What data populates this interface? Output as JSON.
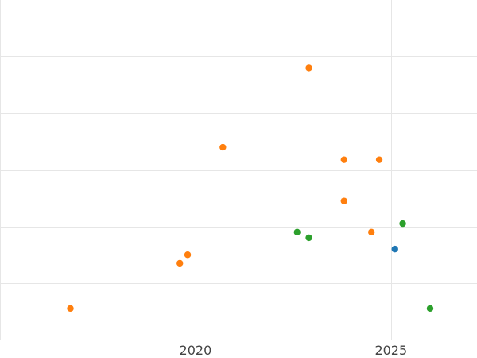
{
  "chart_data": {
    "type": "scatter",
    "title": "",
    "xlabel": "",
    "ylabel": "",
    "xlim": [
      2015.0,
      2027.2
    ],
    "ylim": [
      0,
      6
    ],
    "x_ticks": [
      2020,
      2025
    ],
    "x_tick_labels": [
      "2020",
      "2025"
    ],
    "y_gridlines": [
      1,
      2,
      3,
      4,
      5
    ],
    "x_minor_gridlines": [
      2015
    ],
    "grid": true,
    "legend": "none",
    "series": [
      {
        "color": "#1f77b4",
        "points": [
          {
            "x": 2025.1,
            "y": 1.6
          }
        ]
      },
      {
        "color": "#ff7f0e",
        "points": [
          {
            "x": 2016.8,
            "y": 0.55
          },
          {
            "x": 2019.6,
            "y": 1.35
          },
          {
            "x": 2019.8,
            "y": 1.5
          },
          {
            "x": 2020.7,
            "y": 3.4
          },
          {
            "x": 2022.9,
            "y": 4.8
          },
          {
            "x": 2023.8,
            "y": 3.18
          },
          {
            "x": 2023.8,
            "y": 2.45
          },
          {
            "x": 2024.5,
            "y": 1.9
          },
          {
            "x": 2024.7,
            "y": 3.18
          }
        ]
      },
      {
        "color": "#2ca02c",
        "points": [
          {
            "x": 2022.6,
            "y": 1.9
          },
          {
            "x": 2022.9,
            "y": 1.8
          },
          {
            "x": 2025.3,
            "y": 2.05
          },
          {
            "x": 2026.0,
            "y": 0.55
          }
        ]
      }
    ]
  }
}
